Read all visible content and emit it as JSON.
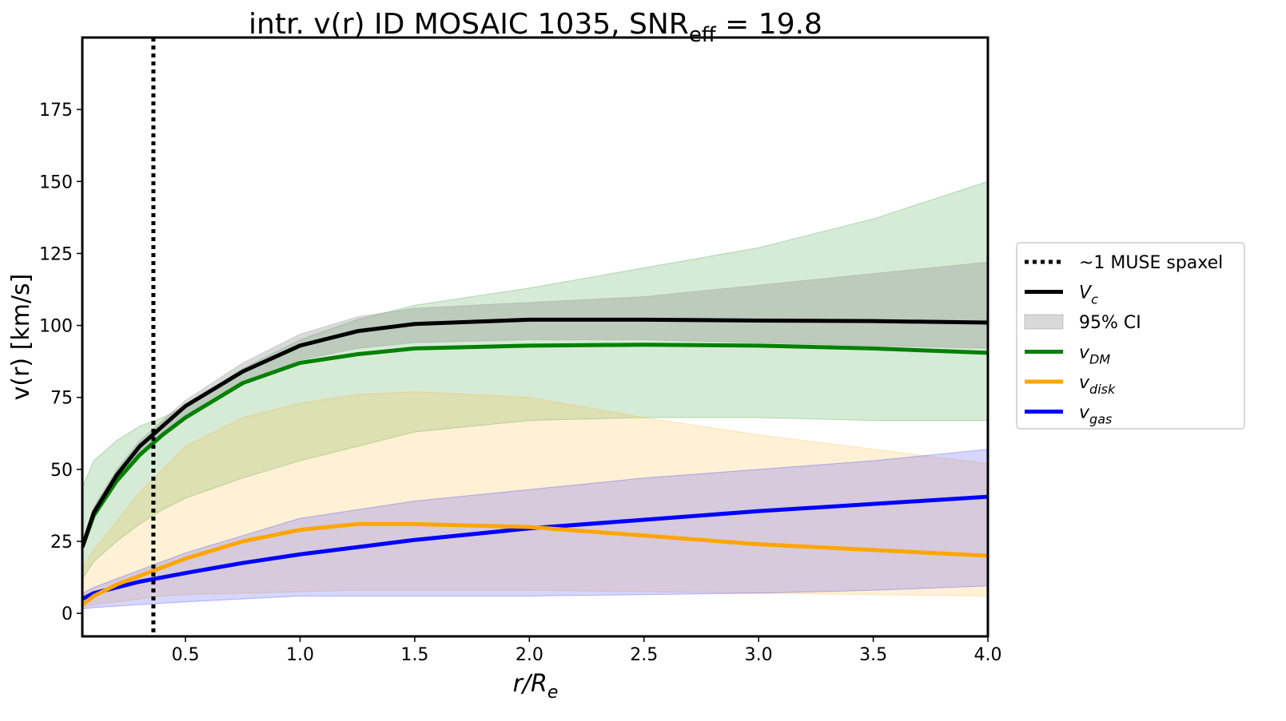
{
  "chart_data": {
    "type": "line",
    "title": "intr. v(r) ID MOSAIC 1035, SNR",
    "title_sub": "eff",
    "title_end": " = 19.8",
    "xlabel": "r/R",
    "xlabel_sub": "e",
    "ylabel": "v(r) [km/s]",
    "xlim": [
      0.05,
      4.0
    ],
    "ylim": [
      -8,
      200
    ],
    "xticks": [
      {
        "value": 0.5,
        "label": "0.5"
      },
      {
        "value": 1,
        "label": "1.0"
      },
      {
        "value": 1.5,
        "label": "1.5"
      },
      {
        "value": 2,
        "label": "2.0"
      },
      {
        "value": 2.5,
        "label": "2.5"
      },
      {
        "value": 3,
        "label": "3.0"
      },
      {
        "value": 3.5,
        "label": "3.5"
      },
      {
        "value": 4,
        "label": "4.0"
      }
    ],
    "yticks": [
      0,
      25,
      50,
      75,
      100,
      125,
      150,
      175
    ],
    "legend": "right",
    "vline": {
      "x": 0.36,
      "label": "~1 MUSE spaxel",
      "color": "#000000"
    },
    "band_label": "95% CI",
    "band_color": "#808080",
    "x": [
      0.05,
      0.1,
      0.2,
      0.3,
      0.4,
      0.5,
      0.75,
      1.0,
      1.25,
      1.5,
      2.0,
      2.5,
      3.0,
      3.5,
      4.0
    ],
    "series": [
      {
        "name": "V",
        "name_sub": "c",
        "color": "#000000",
        "values": [
          23,
          35,
          48,
          58,
          65,
          72,
          84,
          93,
          98,
          100.5,
          102,
          102,
          101.7,
          101.5,
          101
        ],
        "lower": [
          22,
          34,
          46,
          56,
          63,
          69,
          80,
          88,
          92,
          94,
          95,
          95,
          94,
          93,
          92
        ],
        "upper": [
          24,
          37,
          50,
          60,
          67,
          74,
          87,
          97,
          103,
          106,
          108,
          110,
          114,
          118,
          122
        ]
      },
      {
        "name": "v",
        "name_sub": "DM",
        "color": "#008000",
        "values": [
          23,
          34,
          46,
          55,
          62,
          68,
          80,
          87,
          90,
          92,
          93,
          93.3,
          93,
          92,
          90.5
        ],
        "lower": [
          12,
          18,
          25,
          31,
          36,
          40,
          47,
          53,
          58,
          63,
          67,
          68,
          68,
          67,
          67
        ],
        "upper": [
          44,
          53,
          60,
          65,
          68,
          72,
          85,
          95,
          102,
          107,
          113,
          120,
          127,
          137,
          150
        ]
      },
      {
        "name": "v",
        "name_sub": "disk",
        "color": "#ffa500",
        "values": [
          3,
          6,
          10,
          13,
          16,
          19,
          25,
          29,
          31,
          31,
          30,
          27,
          24,
          22,
          20
        ],
        "lower": [
          2,
          3,
          4,
          5,
          6,
          6.5,
          7,
          7.5,
          8,
          8,
          8,
          7.5,
          7,
          6.5,
          6
        ],
        "upper": [
          16,
          22,
          32,
          42,
          50,
          58,
          68,
          73,
          76,
          77,
          75,
          68,
          62,
          57,
          52
        ]
      },
      {
        "name": "v",
        "name_sub": "gas",
        "color": "#0000ff",
        "values": [
          5,
          7,
          9,
          11,
          12.5,
          14,
          17.5,
          20.5,
          23,
          25.5,
          29.5,
          32.5,
          35.5,
          38,
          40.5
        ],
        "lower": [
          1.5,
          2,
          2.5,
          3,
          3.5,
          4,
          5,
          6,
          6,
          6,
          6,
          6.5,
          7,
          8,
          9.5
        ],
        "upper": [
          7,
          9,
          12,
          15,
          18,
          21,
          27,
          33,
          36,
          39,
          43,
          47,
          50,
          53,
          57
        ]
      }
    ]
  }
}
